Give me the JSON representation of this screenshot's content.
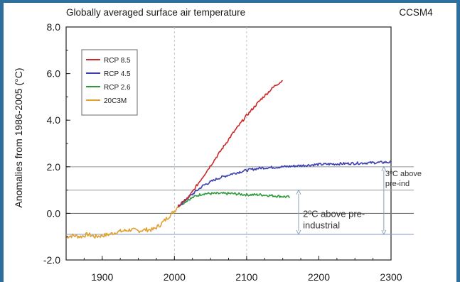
{
  "chart_data": {
    "type": "line",
    "title": "Globally averaged surface air temperature",
    "model_label": "CCSM4",
    "ylabel": "Anomalies from 1986-2005 (°C)",
    "xlabel": "",
    "xlim": [
      1850,
      2300
    ],
    "ylim": [
      -2.0,
      8.0
    ],
    "x_ticks": [
      1900,
      2000,
      2100,
      2200,
      2300
    ],
    "y_ticks": [
      -2.0,
      0.0,
      2.0,
      4.0,
      6.0,
      8.0
    ],
    "x_tick_labels": [
      "1900",
      "2000",
      "2100",
      "2200",
      "2300"
    ],
    "y_tick_labels": [
      "-2.0",
      "0.0",
      "2.0",
      "4.0",
      "6.0",
      "8.0"
    ],
    "legend_position": "top-left",
    "grid": false,
    "series": [
      {
        "name": "RCP 8.5",
        "color": "#cc2a2a",
        "x": [
          2005,
          2020,
          2040,
          2060,
          2080,
          2100,
          2120,
          2140,
          2150
        ],
        "y": [
          0.3,
          0.7,
          1.6,
          2.5,
          3.4,
          4.2,
          4.9,
          5.5,
          5.7
        ]
      },
      {
        "name": "RCP 4.5",
        "color": "#3b3fb0",
        "x": [
          2005,
          2020,
          2040,
          2060,
          2080,
          2100,
          2120,
          2150,
          2200,
          2250,
          2300
        ],
        "y": [
          0.3,
          0.7,
          1.2,
          1.5,
          1.7,
          1.85,
          1.95,
          2.0,
          2.1,
          2.15,
          2.2
        ]
      },
      {
        "name": "RCP 2.6",
        "color": "#2e9a3c",
        "x": [
          2005,
          2020,
          2030,
          2040,
          2060,
          2080,
          2100,
          2120,
          2140,
          2160
        ],
        "y": [
          0.3,
          0.6,
          0.75,
          0.85,
          0.85,
          0.85,
          0.8,
          0.8,
          0.75,
          0.7
        ]
      },
      {
        "name": "20C3M",
        "color": "#e0a030",
        "x": [
          1850,
          1860,
          1870,
          1880,
          1890,
          1900,
          1910,
          1920,
          1930,
          1940,
          1950,
          1960,
          1970,
          1980,
          1990,
          2000,
          2005
        ],
        "y": [
          -1.0,
          -0.95,
          -1.0,
          -0.9,
          -1.0,
          -0.95,
          -0.9,
          -0.8,
          -0.75,
          -0.7,
          -0.75,
          -0.7,
          -0.7,
          -0.5,
          -0.2,
          0.1,
          0.3
        ]
      }
    ],
    "reference_lines": [
      {
        "y": 2.0,
        "color": "#9aa0a6"
      },
      {
        "y": 1.0,
        "color": "#9aa0a6"
      },
      {
        "y": 0.0,
        "color": "#777777"
      },
      {
        "y": -0.9,
        "color": "#8aa0c8"
      }
    ],
    "vertical_lines": [
      2000,
      2100
    ],
    "annotations": [
      {
        "text": [
          "2ºC above pre-",
          "industrial"
        ],
        "x": 2178,
        "y": -0.15
      },
      {
        "text": [
          "3ºC above",
          "pre-ind"
        ],
        "x": 2292,
        "y": 1.6
      }
    ],
    "arrows": [
      {
        "x": 2172,
        "y_from": 1.0,
        "y_to": -0.9
      },
      {
        "x": 2290,
        "y_from": 2.0,
        "y_to": -0.9
      }
    ]
  }
}
